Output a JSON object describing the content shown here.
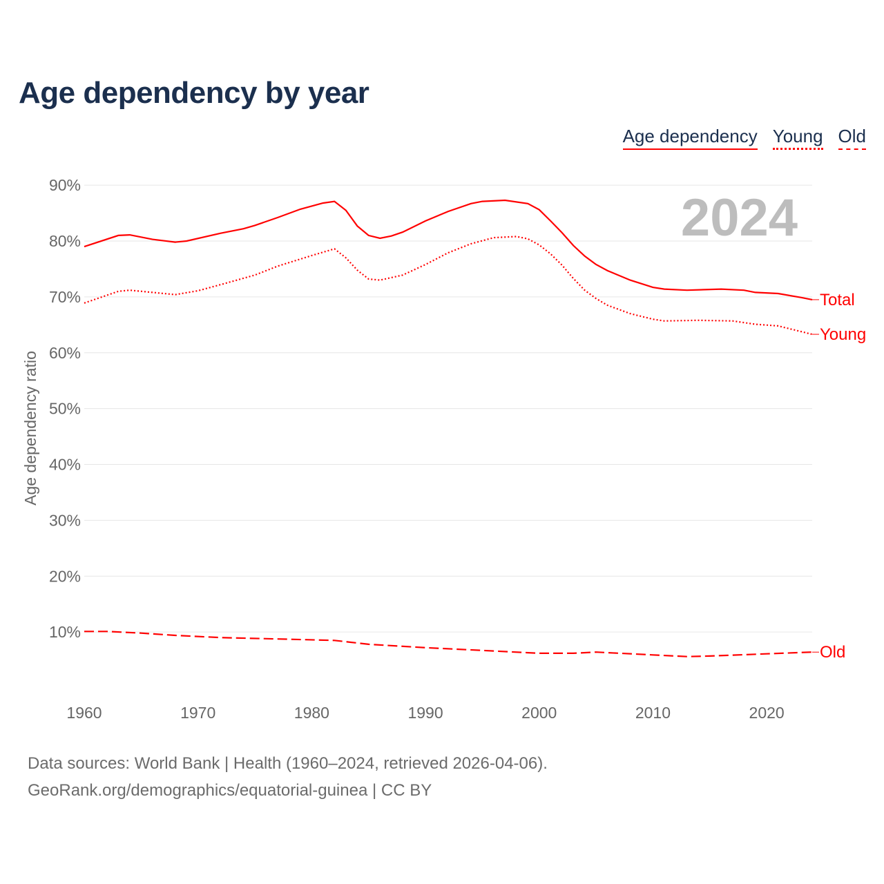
{
  "title": "Age dependency by year",
  "legend": {
    "total": "Age dependency",
    "young": "Young",
    "old": "Old"
  },
  "footer": {
    "line1": "Data sources: World Bank | Health (1960–2024, retrieved 2026-04-06).",
    "line2": "GeoRank.org/demographics/equatorial-guinea | CC BY"
  },
  "chart_data": {
    "type": "line",
    "title": "Age dependency by year",
    "ylabel": "Age dependency ratio",
    "xlabel": "",
    "year_label": "2024",
    "xlim": [
      1960,
      2024
    ],
    "ylim": [
      0,
      90
    ],
    "x_ticks": [
      "1960",
      "1970",
      "1980",
      "1990",
      "2000",
      "2010",
      "2020"
    ],
    "y_ticks": [
      "10%",
      "20%",
      "30%",
      "40%",
      "50%",
      "60%",
      "70%",
      "80%",
      "90%"
    ],
    "colors": {
      "line": "#ff0000",
      "grid": "#e6e6e6",
      "year": "#bdbdbd"
    },
    "series": [
      {
        "name": "Total",
        "style": "solid",
        "points": [
          [
            1960,
            79.0
          ],
          [
            1963,
            81.0
          ],
          [
            1964,
            81.1
          ],
          [
            1966,
            80.3
          ],
          [
            1968,
            79.8
          ],
          [
            1969,
            80.0
          ],
          [
            1972,
            81.4
          ],
          [
            1974,
            82.2
          ],
          [
            1975,
            82.8
          ],
          [
            1977,
            84.2
          ],
          [
            1979,
            85.7
          ],
          [
            1981,
            86.8
          ],
          [
            1982,
            87.1
          ],
          [
            1983,
            85.5
          ],
          [
            1984,
            82.7
          ],
          [
            1985,
            81.0
          ],
          [
            1986,
            80.5
          ],
          [
            1987,
            80.9
          ],
          [
            1988,
            81.6
          ],
          [
            1990,
            83.6
          ],
          [
            1992,
            85.3
          ],
          [
            1994,
            86.7
          ],
          [
            1995,
            87.1
          ],
          [
            1997,
            87.3
          ],
          [
            1999,
            86.7
          ],
          [
            2000,
            85.6
          ],
          [
            2001,
            83.6
          ],
          [
            2002,
            81.5
          ],
          [
            2003,
            79.2
          ],
          [
            2004,
            77.3
          ],
          [
            2005,
            75.8
          ],
          [
            2006,
            74.7
          ],
          [
            2008,
            73.0
          ],
          [
            2010,
            71.7
          ],
          [
            2011,
            71.4
          ],
          [
            2013,
            71.2
          ],
          [
            2016,
            71.4
          ],
          [
            2018,
            71.2
          ],
          [
            2019,
            70.8
          ],
          [
            2021,
            70.6
          ],
          [
            2023,
            69.9
          ],
          [
            2024,
            69.5
          ]
        ]
      },
      {
        "name": "Young",
        "style": "dotted",
        "points": [
          [
            1960,
            68.9
          ],
          [
            1963,
            71.0
          ],
          [
            1964,
            71.2
          ],
          [
            1966,
            70.8
          ],
          [
            1968,
            70.4
          ],
          [
            1970,
            71.1
          ],
          [
            1972,
            72.2
          ],
          [
            1975,
            73.9
          ],
          [
            1977,
            75.5
          ],
          [
            1980,
            77.4
          ],
          [
            1982,
            78.6
          ],
          [
            1983,
            77.0
          ],
          [
            1984,
            74.8
          ],
          [
            1985,
            73.2
          ],
          [
            1986,
            73.0
          ],
          [
            1988,
            73.9
          ],
          [
            1990,
            75.8
          ],
          [
            1992,
            77.9
          ],
          [
            1994,
            79.5
          ],
          [
            1996,
            80.6
          ],
          [
            1998,
            80.8
          ],
          [
            1999,
            80.4
          ],
          [
            2000,
            79.3
          ],
          [
            2001,
            77.7
          ],
          [
            2002,
            75.7
          ],
          [
            2003,
            73.3
          ],
          [
            2004,
            71.2
          ],
          [
            2005,
            69.7
          ],
          [
            2006,
            68.5
          ],
          [
            2008,
            67.0
          ],
          [
            2010,
            66.0
          ],
          [
            2011,
            65.7
          ],
          [
            2014,
            65.8
          ],
          [
            2017,
            65.7
          ],
          [
            2019,
            65.1
          ],
          [
            2021,
            64.8
          ],
          [
            2023,
            63.8
          ],
          [
            2024,
            63.3
          ]
        ]
      },
      {
        "name": "Old",
        "style": "dashed",
        "points": [
          [
            1960,
            10.1
          ],
          [
            1962,
            10.1
          ],
          [
            1965,
            9.8
          ],
          [
            1968,
            9.4
          ],
          [
            1972,
            9.0
          ],
          [
            1978,
            8.7
          ],
          [
            1982,
            8.5
          ],
          [
            1985,
            7.8
          ],
          [
            1990,
            7.2
          ],
          [
            1995,
            6.7
          ],
          [
            2000,
            6.2
          ],
          [
            2003,
            6.2
          ],
          [
            2005,
            6.4
          ],
          [
            2010,
            5.9
          ],
          [
            2013,
            5.6
          ],
          [
            2015,
            5.7
          ],
          [
            2020,
            6.1
          ],
          [
            2024,
            6.4
          ]
        ]
      }
    ]
  }
}
